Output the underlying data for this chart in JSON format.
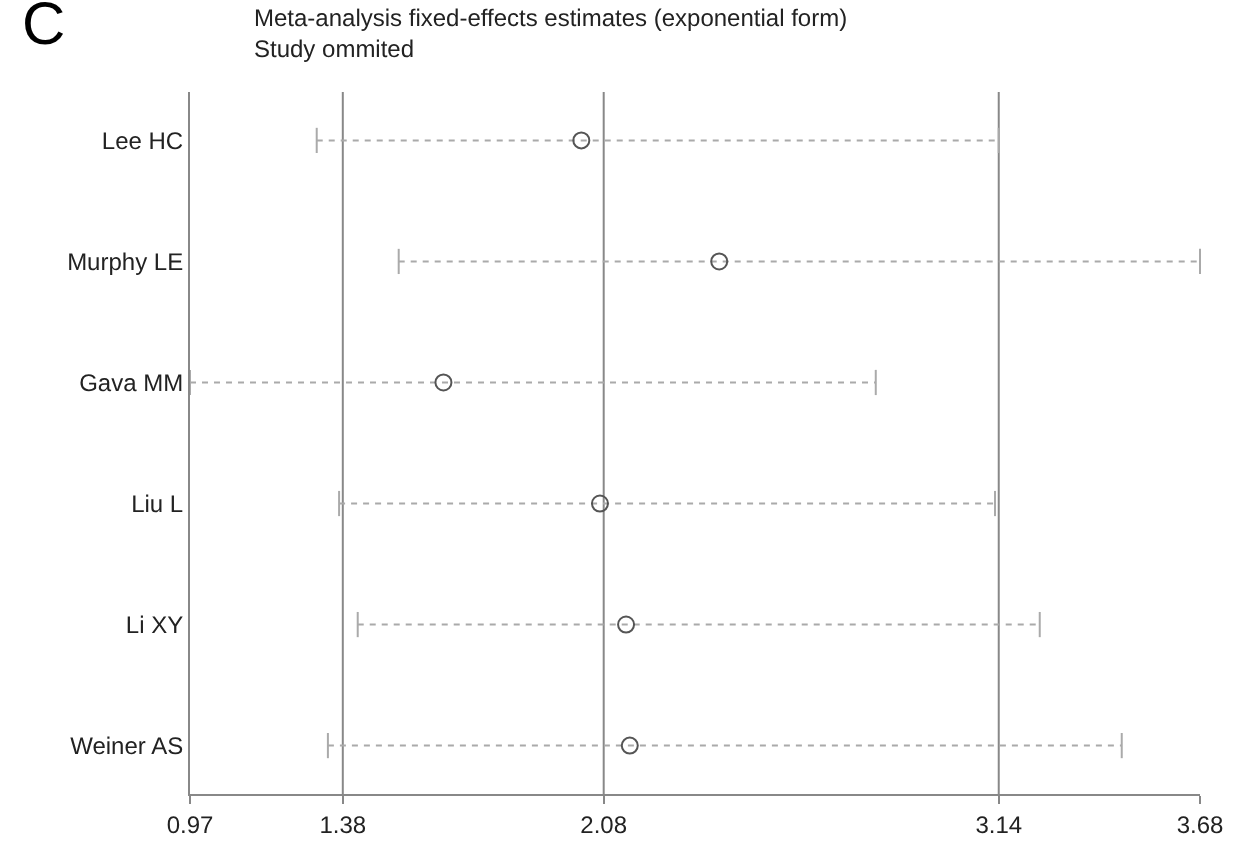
{
  "chart_data": {
    "type": "scatter",
    "orientation": "horizontal",
    "title": "Meta-analysis fixed-effects estimates (exponential form)",
    "subtitle": "Study ommited",
    "annotations": [
      "C"
    ],
    "categories": [
      "Lee HC",
      "Murphy LE",
      "Gava MM",
      "Liu L",
      "Li XY",
      "Weiner AS"
    ],
    "values": [
      2.02,
      2.39,
      1.65,
      2.07,
      2.14,
      2.15
    ],
    "errors": [
      [
        1.31,
        3.14
      ],
      [
        1.53,
        3.68
      ],
      [
        0.97,
        2.81
      ],
      [
        1.37,
        3.13
      ],
      [
        1.42,
        3.25
      ],
      [
        1.34,
        3.47
      ]
    ],
    "line_style": "dotted",
    "color": "#555555",
    "marker": "circle",
    "xlim": [
      0.97,
      3.68
    ],
    "xticks": [
      0.97,
      1.38,
      2.08,
      3.14,
      3.68
    ],
    "ref_lines": [
      {
        "axis": "x",
        "value": 1.38,
        "color": "#888888"
      },
      {
        "axis": "x",
        "value": 2.08,
        "color": "#888888"
      },
      {
        "axis": "x",
        "value": 3.14,
        "color": "#888888"
      }
    ],
    "grid": false,
    "legend": false
  }
}
